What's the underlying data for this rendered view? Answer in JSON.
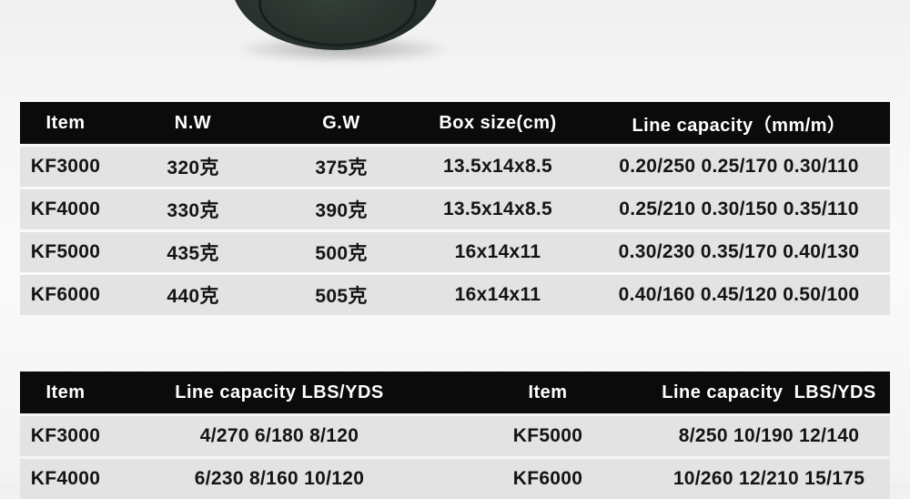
{
  "product_photo": {
    "name": "reel-body-photo",
    "description": "dark green-black rounded product body, cropped at top edge",
    "body_color": "#2e3833"
  },
  "colors": {
    "header_bg": "#0b0b0b",
    "header_text": "#ffffff",
    "row_bg": "#e3e3e3",
    "cell_text": "#141414",
    "page_bg": "#f3f3f3"
  },
  "spec_table": {
    "headers": [
      "Item",
      "N.W",
      "G.W",
      "Box size(cm)",
      "Line capacity（mm/m）"
    ],
    "rows": [
      {
        "item": "KF3000",
        "nw": "320克",
        "gw": "375克",
        "box": "13.5x14x8.5",
        "line": "0.20/250 0.25/170 0.30/110"
      },
      {
        "item": "KF4000",
        "nw": "330克",
        "gw": "390克",
        "box": "13.5x14x8.5",
        "line": "0.25/210 0.30/150 0.35/110"
      },
      {
        "item": "KF5000",
        "nw": "435克",
        "gw": "500克",
        "box": "16x14x11",
        "line": "0.30/230 0.35/170 0.40/130"
      },
      {
        "item": "KF6000",
        "nw": "440克",
        "gw": "505克",
        "box": "16x14x11",
        "line": "0.40/160 0.45/120 0.50/100"
      }
    ]
  },
  "line_table": {
    "headers": [
      "Item",
      "Line capacity LBS/YDS",
      "Item",
      "Line capacity  LBS/YDS"
    ],
    "rows": [
      {
        "item_left": "KF3000",
        "capacity_left": "4/270 6/180 8/120",
        "item_right": "KF5000",
        "capacity_right": "8/250 10/190 12/140"
      },
      {
        "item_left": "KF4000",
        "capacity_left": "6/230 8/160 10/120",
        "item_right": "KF6000",
        "capacity_right": "10/260 12/210 15/175"
      }
    ]
  }
}
